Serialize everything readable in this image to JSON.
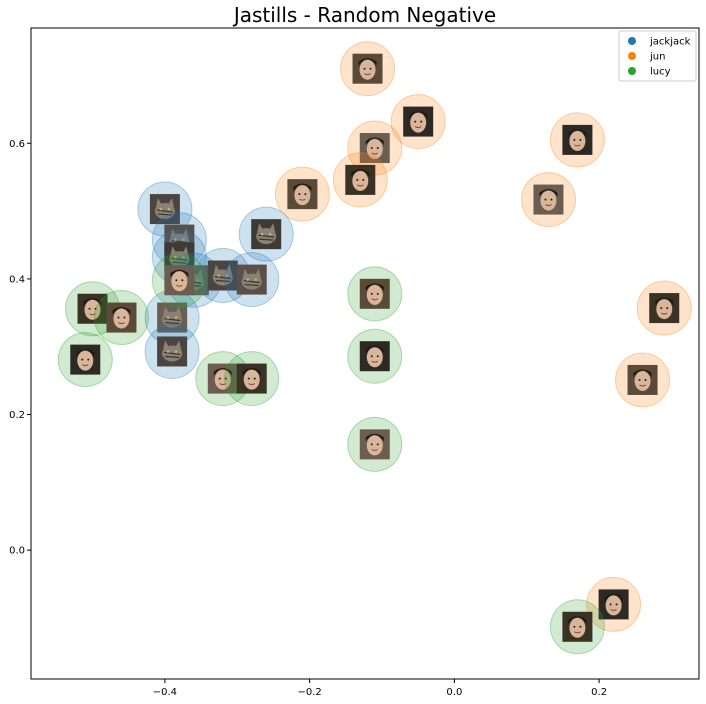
{
  "chart_data": {
    "type": "scatter",
    "title": "Jastills - Random Negative",
    "xlabel": "",
    "ylabel": "",
    "xlim": [
      -0.585,
      0.338
    ],
    "ylim": [
      -0.19,
      0.77
    ],
    "x_ticks": [
      -0.4,
      -0.2,
      0.0,
      0.2
    ],
    "x_tick_labels": [
      "−0.4",
      "−0.2",
      "0.0",
      "0.2"
    ],
    "y_ticks": [
      0.0,
      0.2,
      0.4,
      0.6
    ],
    "y_tick_labels": [
      "0.0",
      "0.2",
      "0.4",
      "0.6"
    ],
    "grid": false,
    "legend_position": "top-right",
    "marker_note": "each point drawn as a translucent circle with a face/cat thumbnail at its center",
    "series": [
      {
        "name": "jackjack",
        "color": "#1f77b4",
        "thumbnail": "cat",
        "points": [
          {
            "x": -0.4,
            "y": 0.503
          },
          {
            "x": -0.38,
            "y": 0.458
          },
          {
            "x": -0.38,
            "y": 0.432
          },
          {
            "x": -0.36,
            "y": 0.398
          },
          {
            "x": -0.32,
            "y": 0.405
          },
          {
            "x": -0.28,
            "y": 0.399
          },
          {
            "x": -0.26,
            "y": 0.466
          },
          {
            "x": -0.39,
            "y": 0.343
          },
          {
            "x": -0.39,
            "y": 0.293
          }
        ]
      },
      {
        "name": "jun",
        "color": "#ff7f0e",
        "thumbnail": "face",
        "points": [
          {
            "x": -0.12,
            "y": 0.71
          },
          {
            "x": -0.05,
            "y": 0.632
          },
          {
            "x": -0.11,
            "y": 0.593
          },
          {
            "x": -0.13,
            "y": 0.546
          },
          {
            "x": -0.21,
            "y": 0.525
          },
          {
            "x": 0.17,
            "y": 0.605
          },
          {
            "x": 0.13,
            "y": 0.517
          },
          {
            "x": 0.29,
            "y": 0.357
          },
          {
            "x": 0.26,
            "y": 0.251
          },
          {
            "x": 0.22,
            "y": -0.08
          }
        ]
      },
      {
        "name": "lucy",
        "color": "#2ca02c",
        "thumbnail": "face",
        "points": [
          {
            "x": -0.38,
            "y": 0.398
          },
          {
            "x": -0.5,
            "y": 0.356
          },
          {
            "x": -0.46,
            "y": 0.343
          },
          {
            "x": -0.51,
            "y": 0.281
          },
          {
            "x": -0.32,
            "y": 0.253
          },
          {
            "x": -0.28,
            "y": 0.253
          },
          {
            "x": -0.11,
            "y": 0.378
          },
          {
            "x": -0.11,
            "y": 0.286
          },
          {
            "x": -0.11,
            "y": 0.156
          },
          {
            "x": 0.17,
            "y": -0.113
          }
        ]
      }
    ]
  }
}
